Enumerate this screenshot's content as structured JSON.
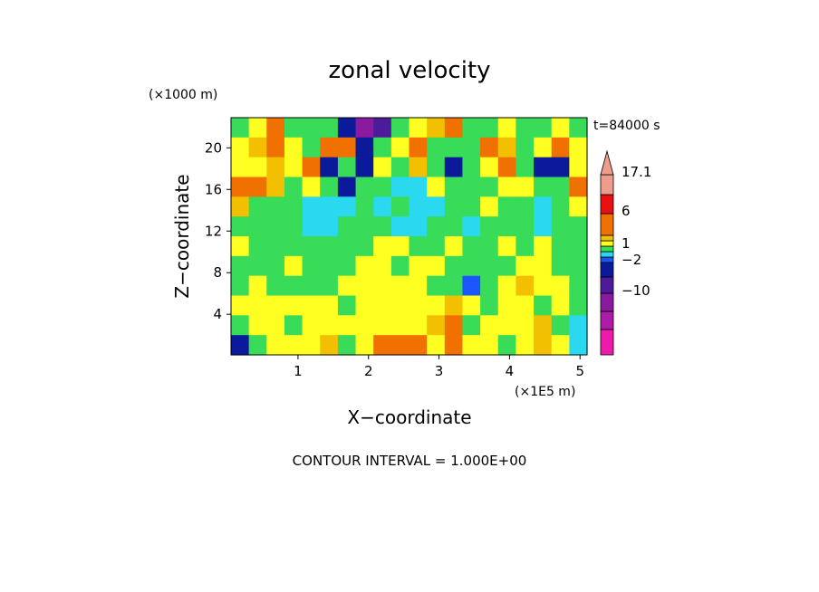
{
  "chart_data": {
    "type": "heatmap",
    "title": "zonal velocity",
    "xlabel": "X−coordinate",
    "ylabel": "Z−coordinate",
    "x_scale_note": "(×1E5 m)",
    "y_scale_note": "(×1000 m)",
    "time_label": "t=84000 s",
    "footer": "CONTOUR INTERVAL = 1.000E+00",
    "xlim": [
      0.05,
      5.1
    ],
    "ylim": [
      0.1,
      22.9
    ],
    "x_ticks": [
      {
        "v": 1,
        "t": "1"
      },
      {
        "v": 2,
        "t": "2"
      },
      {
        "v": 3,
        "t": "3"
      },
      {
        "v": 4,
        "t": "4"
      },
      {
        "v": 5,
        "t": "5"
      }
    ],
    "y_ticks": [
      {
        "v": 4,
        "t": "4"
      },
      {
        "v": 8,
        "t": "8"
      },
      {
        "v": 12,
        "t": "12"
      },
      {
        "v": 16,
        "t": "16"
      },
      {
        "v": 20,
        "t": "20"
      }
    ],
    "colorbar": {
      "levels": [
        {
          "color": "#ee1aaa",
          "label": ""
        },
        {
          "color": "#b01aa8",
          "label": ""
        },
        {
          "color": "#8a1aa0",
          "label": "−10"
        },
        {
          "color": "#4c1a9a",
          "label": ""
        },
        {
          "color": "#0a1a9a",
          "label": "−2"
        },
        {
          "color": "#1a55ff",
          "label": ""
        },
        {
          "color": "#2ad8f0",
          "label": ""
        },
        {
          "color": "#38dc58",
          "label": "1"
        },
        {
          "color": "#ffff22",
          "label": ""
        },
        {
          "color": "#f2c000",
          "label": ""
        },
        {
          "color": "#f07000",
          "label": "6"
        },
        {
          "color": "#e81010",
          "label": ""
        },
        {
          "color": "#ee9c8c",
          "label": "17.1"
        }
      ]
    },
    "field": {
      "nx": 20,
      "ny": 12,
      "cell_values_top_to_bottom": [
        [
          1,
          2,
          4,
          1,
          1,
          1,
          -4,
          -7,
          -6,
          1,
          2,
          3,
          4,
          1,
          1,
          2,
          1,
          1,
          2,
          1
        ],
        [
          2,
          3,
          4,
          2,
          1,
          5,
          5,
          -3,
          1,
          2,
          4,
          1,
          1,
          1,
          5,
          3,
          1,
          2,
          4,
          2
        ],
        [
          2,
          2,
          3,
          2,
          4,
          -3,
          1,
          -3,
          2,
          1,
          3,
          1,
          -3,
          1,
          2,
          5,
          1,
          -4,
          -4,
          2
        ],
        [
          5,
          5,
          3,
          1,
          2,
          1,
          -3,
          1,
          1,
          0,
          -1,
          2,
          1,
          1,
          1,
          2,
          2,
          1,
          1,
          5
        ],
        [
          3,
          1,
          1,
          1,
          0,
          0,
          0,
          1,
          0,
          1,
          0,
          0,
          1,
          1,
          2,
          1,
          1,
          0,
          1,
          2
        ],
        [
          1,
          1,
          1,
          1,
          0,
          0,
          1,
          1,
          1,
          0,
          0,
          1,
          1,
          0,
          1,
          1,
          1,
          0,
          1,
          1
        ],
        [
          2,
          1,
          1,
          1,
          1,
          1,
          1,
          1,
          2,
          2,
          1,
          1,
          2,
          1,
          1,
          2,
          1,
          2,
          1,
          1
        ],
        [
          1,
          1,
          1,
          2,
          1,
          1,
          1,
          2,
          2,
          1,
          2,
          2,
          1,
          1,
          1,
          1,
          2,
          2,
          1,
          1
        ],
        [
          1,
          2,
          1,
          1,
          1,
          1,
          2,
          2,
          2,
          2,
          2,
          1,
          1,
          -2,
          1,
          2,
          3,
          2,
          2,
          1
        ],
        [
          2,
          2,
          2,
          2,
          2,
          2,
          1,
          2,
          2,
          2,
          2,
          2,
          3,
          2,
          1,
          2,
          2,
          1,
          2,
          1
        ],
        [
          1,
          2,
          2,
          1,
          2,
          2,
          2,
          2,
          2,
          2,
          2,
          3,
          4,
          1,
          2,
          2,
          2,
          3,
          1,
          0
        ],
        [
          -3,
          1,
          2,
          2,
          2,
          3,
          1,
          2,
          4,
          4,
          4,
          2,
          4,
          2,
          2,
          1,
          2,
          3,
          2,
          0
        ]
      ]
    }
  }
}
